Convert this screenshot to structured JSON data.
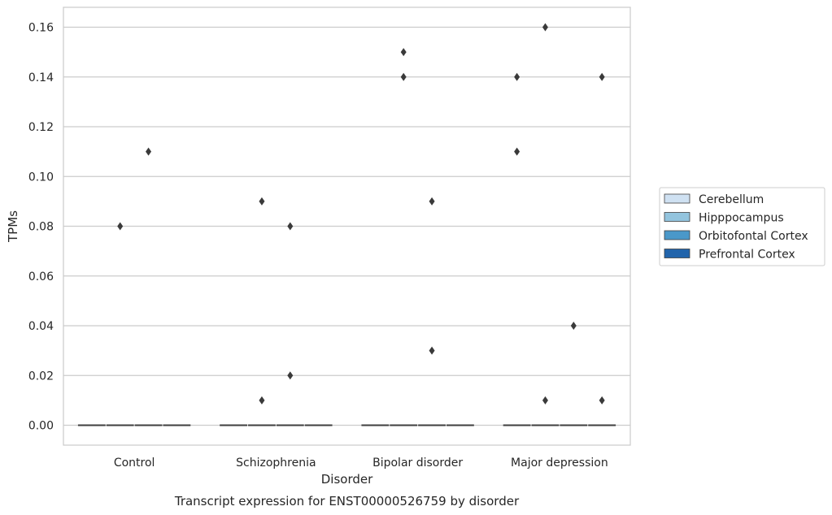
{
  "chart_data": {
    "type": "box",
    "caption": "Transcript expression for ENST00000526759 by disorder",
    "xlabel": "Disorder",
    "ylabel": "TPMs",
    "ylim": [
      -0.008,
      0.168
    ],
    "yticks": [
      0.0,
      0.02,
      0.04,
      0.06,
      0.08,
      0.1,
      0.12,
      0.14,
      0.16
    ],
    "ytick_labels": [
      "0.00",
      "0.02",
      "0.04",
      "0.06",
      "0.08",
      "0.10",
      "0.12",
      "0.14",
      "0.16"
    ],
    "grid": true,
    "legend_placement": "right",
    "categories": [
      "Control",
      "Schizophrenia",
      "Bipolar disorder",
      "Major depression"
    ],
    "series": [
      {
        "name": "Cerebellum",
        "color": "#cfe1f2",
        "median": [
          0,
          0,
          0,
          0
        ],
        "outliers": [
          [],
          [],
          [],
          [
            0.14,
            0.11
          ]
        ]
      },
      {
        "name": "Hipppocampus",
        "color": "#93c4de",
        "median": [
          0,
          0,
          0,
          0
        ],
        "outliers": [
          [
            0.08
          ],
          [
            0.09,
            0.01
          ],
          [
            0.14,
            0.15
          ],
          [
            0.16,
            0.01
          ]
        ]
      },
      {
        "name": "Orbitofontal Cortex",
        "color": "#4a98c9",
        "median": [
          0,
          0,
          0,
          0
        ],
        "outliers": [
          [
            0.11
          ],
          [
            0.08,
            0.02
          ],
          [
            0.09,
            0.03
          ],
          [
            0.04
          ]
        ]
      },
      {
        "name": "Prefrontal Cortex",
        "color": "#2164ab",
        "median": [
          0,
          0,
          0,
          0
        ],
        "outliers": [
          [],
          [],
          [],
          [
            0.14,
            0.01
          ]
        ]
      }
    ]
  }
}
